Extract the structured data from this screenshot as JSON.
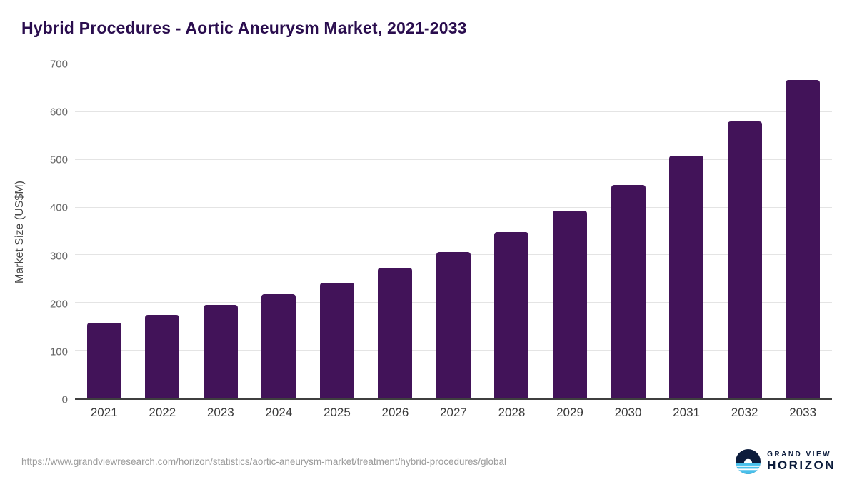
{
  "title": "Hybrid Procedures - Aortic Aneurysm Market, 2021-2033",
  "y_axis_label": "Market Size (US$M)",
  "footer": {
    "source_url": "https://www.grandviewresearch.com/horizon/statistics/aortic-aneurysm-market/treatment/hybrid-procedures/global",
    "brand_line1": "GRAND VIEW",
    "brand_line2": "HORIZON"
  },
  "colors": {
    "bar": "#421359",
    "title": "#2a0d4e",
    "grid": "#e4e4e4",
    "axis": "#3f3f3f",
    "tick_label": "#666666",
    "x_label": "#3a3a3a",
    "url_text": "#9b9b9b",
    "brand_navy": "#0c1c3c",
    "brand_blue": "#49c0eb"
  },
  "chart_data": {
    "type": "bar",
    "title": "Hybrid Procedures - Aortic Aneurysm Market, 2021-2033",
    "categories": [
      "2021",
      "2022",
      "2023",
      "2024",
      "2025",
      "2026",
      "2027",
      "2028",
      "2029",
      "2030",
      "2031",
      "2032",
      "2033"
    ],
    "values": [
      158,
      175,
      196,
      218,
      243,
      273,
      307,
      348,
      394,
      447,
      508,
      580,
      667
    ],
    "xlabel": "",
    "ylabel": "Market Size (US$M)",
    "ylim": [
      0,
      700
    ],
    "yticks": [
      0,
      100,
      200,
      300,
      400,
      500,
      600,
      700
    ],
    "grid": "horizontal",
    "legend": "none",
    "bar_color": "#421359"
  }
}
